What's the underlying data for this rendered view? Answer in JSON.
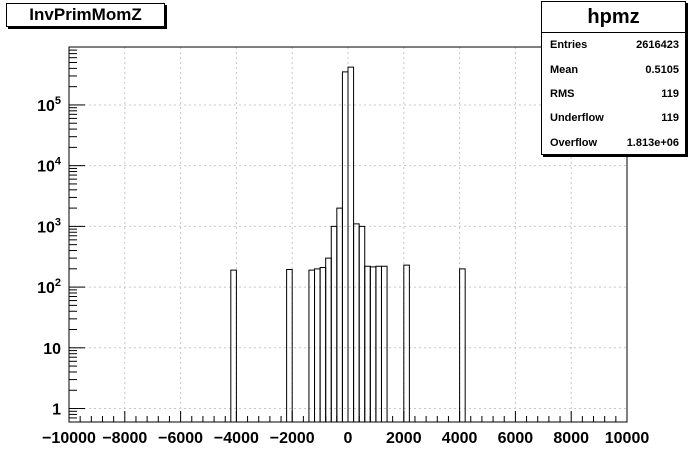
{
  "title": "InvPrimMomZ",
  "stats": {
    "name": "hpmz",
    "rows": [
      {
        "label": "Entries",
        "value": "2616423"
      },
      {
        "label": "Mean",
        "value": "0.5105"
      },
      {
        "label": "RMS",
        "value": "119"
      },
      {
        "label": "Underflow",
        "value": "119"
      },
      {
        "label": "Overflow",
        "value": "1.813e+06"
      }
    ]
  },
  "chart_data": {
    "type": "histogram",
    "title": "InvPrimMomZ",
    "y_scale": "log",
    "xlim": [
      -10000,
      10000
    ],
    "ylim": [
      0.6,
      900000
    ],
    "grid": true,
    "x_ticks": [
      -10000,
      -8000,
      -6000,
      -4000,
      -2000,
      0,
      2000,
      4000,
      6000,
      8000,
      10000
    ],
    "x_tick_labels": [
      "−10000",
      "−8000",
      "−6000",
      "−4000",
      "−2000",
      "0",
      "2000",
      "4000",
      "6000",
      "8000",
      "10000"
    ],
    "y_tick_labels": [
      {
        "value": 1,
        "base": "1",
        "exp": ""
      },
      {
        "value": 10,
        "base": "10",
        "exp": ""
      },
      {
        "value": 100,
        "base": "10",
        "exp": "2"
      },
      {
        "value": 1000,
        "base": "10",
        "exp": "3"
      },
      {
        "value": 10000,
        "base": "10",
        "exp": "4"
      },
      {
        "value": 100000,
        "base": "10",
        "exp": "5"
      }
    ],
    "bins": [
      {
        "x0": -4200,
        "x1": -4000,
        "y": 190
      },
      {
        "x0": -2200,
        "x1": -2000,
        "y": 195
      },
      {
        "x0": -1400,
        "x1": -1200,
        "y": 190
      },
      {
        "x0": -1200,
        "x1": -1000,
        "y": 200
      },
      {
        "x0": -1000,
        "x1": -800,
        "y": 210
      },
      {
        "x0": -800,
        "x1": -600,
        "y": 300
      },
      {
        "x0": -600,
        "x1": -400,
        "y": 1000
      },
      {
        "x0": -400,
        "x1": -200,
        "y": 2000
      },
      {
        "x0": -200,
        "x1": 0,
        "y": 350000
      },
      {
        "x0": 0,
        "x1": 200,
        "y": 420000
      },
      {
        "x0": 200,
        "x1": 400,
        "y": 1100
      },
      {
        "x0": 400,
        "x1": 600,
        "y": 1000
      },
      {
        "x0": 600,
        "x1": 800,
        "y": 220
      },
      {
        "x0": 800,
        "x1": 1000,
        "y": 215
      },
      {
        "x0": 1000,
        "x1": 1200,
        "y": 220
      },
      {
        "x0": 1200,
        "x1": 1400,
        "y": 220
      },
      {
        "x0": 2000,
        "x1": 2200,
        "y": 230
      },
      {
        "x0": 4000,
        "x1": 4200,
        "y": 200
      }
    ]
  }
}
